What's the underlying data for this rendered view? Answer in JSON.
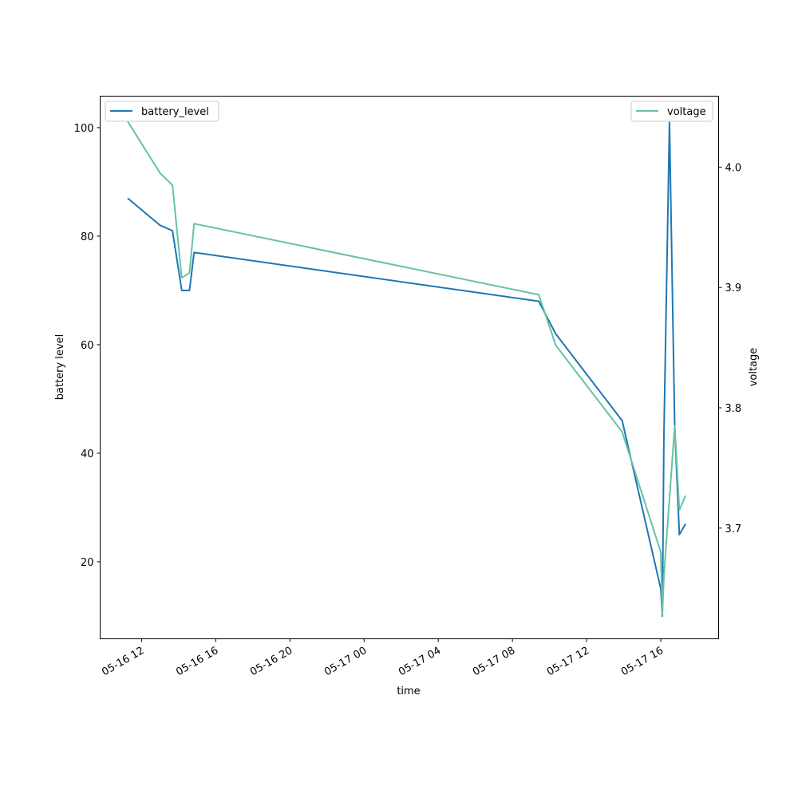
{
  "chart_data": {
    "type": "line",
    "xlabel": "time",
    "ylabel_left": "battery level",
    "ylabel_right": "voltage",
    "x_range": [
      "2016-05-16 09:46",
      "2016-05-17 19:07"
    ],
    "x_ticks": [
      {
        "value": "2016-05-16 12:00",
        "label": "05-16 12"
      },
      {
        "value": "2016-05-16 16:00",
        "label": "05-16 16"
      },
      {
        "value": "2016-05-16 20:00",
        "label": "05-16 20"
      },
      {
        "value": "2016-05-17 00:00",
        "label": "05-17 00"
      },
      {
        "value": "2016-05-17 04:00",
        "label": "05-17 04"
      },
      {
        "value": "2016-05-17 08:00",
        "label": "05-17 08"
      },
      {
        "value": "2016-05-17 12:00",
        "label": "05-17 12"
      },
      {
        "value": "2016-05-17 16:00",
        "label": "05-17 16"
      }
    ],
    "ylim_left": [
      5.8,
      105.8
    ],
    "yticks_left": [
      20,
      40,
      60,
      80,
      100
    ],
    "ylim_right": [
      3.608,
      4.059
    ],
    "yticks_right": [
      3.7,
      3.8,
      3.9,
      4.0
    ],
    "series": [
      {
        "name": "battery_level",
        "axis": "left",
        "color": "#1f77b4",
        "points": [
          {
            "x": "2016-05-16 11:15",
            "y": 87
          },
          {
            "x": "2016-05-16 13:00",
            "y": 82
          },
          {
            "x": "2016-05-16 13:40",
            "y": 81
          },
          {
            "x": "2016-05-16 14:10",
            "y": 70
          },
          {
            "x": "2016-05-16 14:35",
            "y": 70
          },
          {
            "x": "2016-05-16 14:50",
            "y": 77
          },
          {
            "x": "2016-05-17 09:25",
            "y": 68
          },
          {
            "x": "2016-05-17 10:20",
            "y": 62
          },
          {
            "x": "2016-05-17 13:55",
            "y": 46
          },
          {
            "x": "2016-05-17 16:00",
            "y": 15
          },
          {
            "x": "2016-05-17 16:05",
            "y": 10
          },
          {
            "x": "2016-05-17 16:10",
            "y": 43
          },
          {
            "x": "2016-05-17 16:28",
            "y": 101
          },
          {
            "x": "2016-05-17 16:45",
            "y": 45
          },
          {
            "x": "2016-05-17 17:00",
            "y": 25
          },
          {
            "x": "2016-05-17 17:20",
            "y": 27
          }
        ]
      },
      {
        "name": "voltage",
        "axis": "right",
        "color": "#66c2a5",
        "points": [
          {
            "x": "2016-05-16 11:15",
            "y": 4.038
          },
          {
            "x": "2016-05-16 13:00",
            "y": 3.995
          },
          {
            "x": "2016-05-16 13:40",
            "y": 3.985
          },
          {
            "x": "2016-05-16 14:10",
            "y": 3.908
          },
          {
            "x": "2016-05-16 14:35",
            "y": 3.912
          },
          {
            "x": "2016-05-16 14:50",
            "y": 3.953
          },
          {
            "x": "2016-05-17 09:25",
            "y": 3.894
          },
          {
            "x": "2016-05-17 10:20",
            "y": 3.852
          },
          {
            "x": "2016-05-17 13:55",
            "y": 3.78
          },
          {
            "x": "2016-05-17 16:00",
            "y": 3.68
          },
          {
            "x": "2016-05-17 16:05",
            "y": 3.628
          },
          {
            "x": "2016-05-17 16:10",
            "y": 3.66
          },
          {
            "x": "2016-05-17 16:45",
            "y": 3.785
          },
          {
            "x": "2016-05-17 17:00",
            "y": 3.715
          },
          {
            "x": "2016-05-17 17:20",
            "y": 3.727
          }
        ]
      }
    ],
    "legend": [
      {
        "series": "battery_level",
        "position": "top-left"
      },
      {
        "series": "voltage",
        "position": "top-right"
      }
    ]
  }
}
